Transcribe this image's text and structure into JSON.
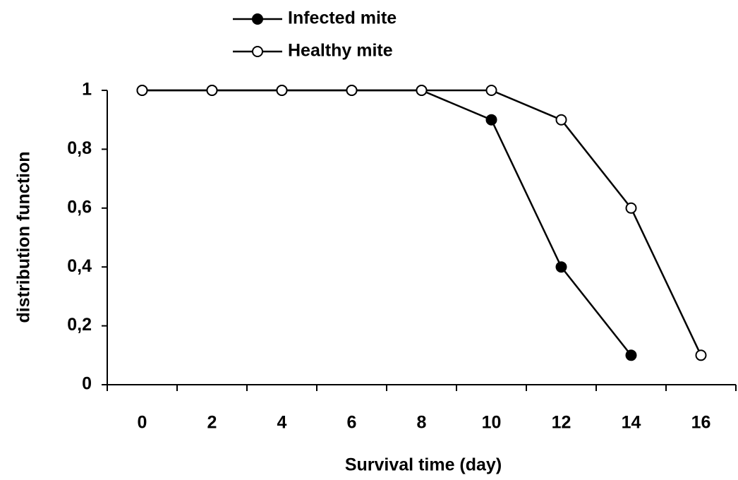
{
  "chart_data": {
    "type": "line",
    "xlabel": "Survival time (day)",
    "ylabel": "distribution function",
    "categories": [
      "0",
      "2",
      "4",
      "6",
      "8",
      "10",
      "12",
      "14",
      "16"
    ],
    "series": [
      {
        "name": "Infected mite",
        "color": "#000000",
        "marker": "filled",
        "values": [
          1,
          1,
          1,
          1,
          1,
          0.9,
          0.4,
          0.1,
          null
        ]
      },
      {
        "name": "Healthy mite",
        "color": "#000000",
        "marker": "open",
        "values": [
          1,
          1,
          1,
          1,
          1,
          1,
          0.9,
          0.6,
          0.1
        ]
      }
    ],
    "ylim": [
      0,
      1
    ],
    "yticks": [
      0,
      {
        "value": 0.2,
        "label": "0,2"
      },
      {
        "value": 0.4,
        "label": "0,4"
      },
      {
        "value": 0.6,
        "label": "0,6"
      },
      {
        "value": 0.8,
        "label": "0,8"
      },
      1
    ],
    "grid": false,
    "legend": "top"
  }
}
